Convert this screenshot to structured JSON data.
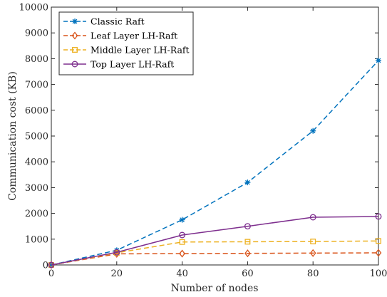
{
  "chart_data": {
    "type": "line",
    "xlabel": "Number of nodes",
    "ylabel": "Communication cost (KB)",
    "xlim": [
      0,
      100
    ],
    "ylim": [
      0,
      10000
    ],
    "xticks": [
      0,
      20,
      40,
      60,
      80,
      100
    ],
    "yticks": [
      0,
      1000,
      2000,
      3000,
      4000,
      5000,
      6000,
      7000,
      8000,
      9000,
      10000
    ],
    "grid": false,
    "legend_position": "top-left",
    "x": [
      0,
      20,
      40,
      60,
      80,
      100
    ],
    "series": [
      {
        "name": "Classic Raft",
        "color": "#0072BD",
        "marker": "asterisk",
        "line": "dashed",
        "values": [
          0,
          570,
          1750,
          3200,
          5200,
          7930
        ]
      },
      {
        "name": "Leaf Layer LH-Raft",
        "color": "#D95319",
        "marker": "diamond",
        "line": "dashed",
        "values": [
          0,
          430,
          440,
          450,
          460,
          470
        ]
      },
      {
        "name": "Middle Layer LH-Raft",
        "color": "#EDB120",
        "marker": "square",
        "line": "dashed",
        "values": [
          0,
          470,
          890,
          900,
          910,
          930
        ]
      },
      {
        "name": "Top Layer LH-Raft",
        "color": "#7E2F8E",
        "marker": "circle",
        "line": "solid",
        "values": [
          0,
          490,
          1160,
          1500,
          1850,
          1880
        ]
      }
    ]
  }
}
